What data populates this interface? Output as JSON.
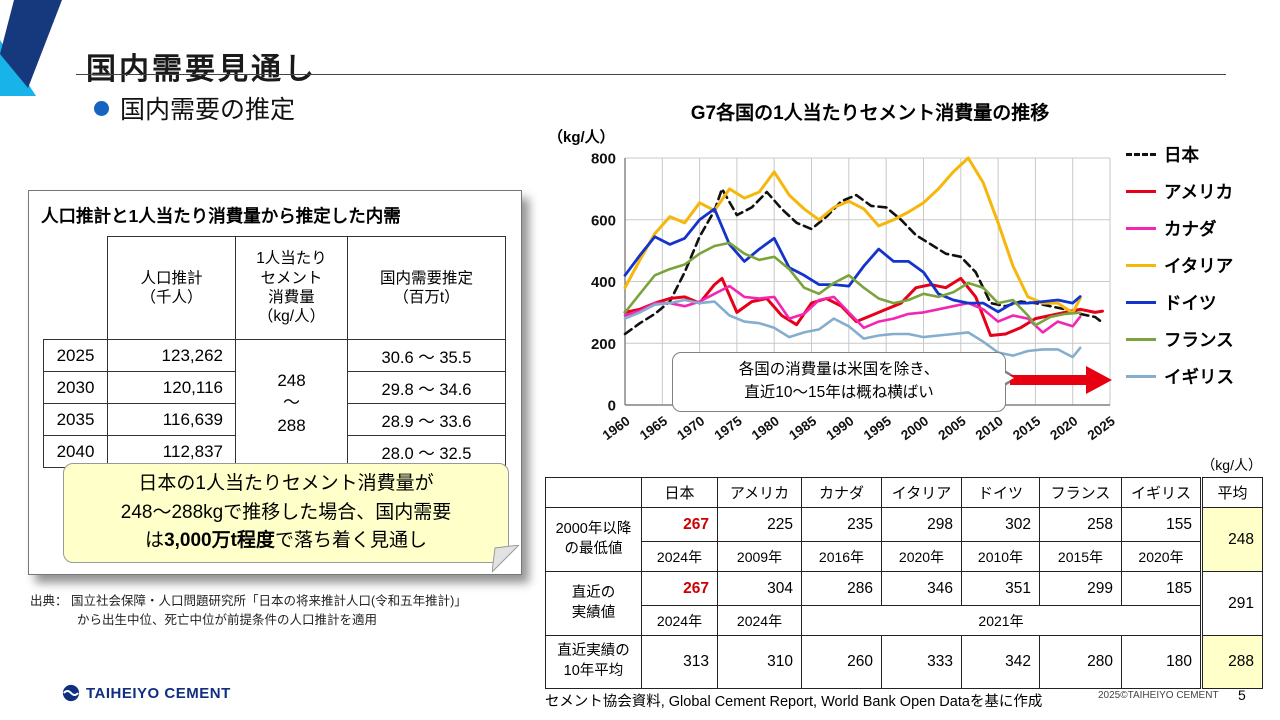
{
  "slide": {
    "title": "国内需要見通し",
    "subtitle": "国内需要の推定",
    "footer_source": "セメント協会資料, Global Cement Report, World Bank Open Dataを基に作成",
    "copyright": "2025©TAIHEIYO CEMENT",
    "page_number": "5",
    "logo_text": "TAIHEIYO CEMENT"
  },
  "estimate_panel": {
    "title": "人口推計と1人当たり消費量から推定した内需",
    "table": {
      "col_headers": [
        "",
        "人口推計\n（千人）",
        "1人当たり\nセメント\n消費量\n（kg/人）",
        "国内需要推定\n（百万t）"
      ],
      "consumption_merged": "248\n～\n288",
      "rows": [
        {
          "year": "2025",
          "population": "123,262",
          "demand": "30.6 ～ 35.5"
        },
        {
          "year": "2030",
          "population": "120,116",
          "demand": "29.8 ～ 34.6"
        },
        {
          "year": "2035",
          "population": "116,639",
          "demand": "28.9 ～ 33.6"
        },
        {
          "year": "2040",
          "population": "112,837",
          "demand": "28.0 ～ 32.5"
        }
      ]
    },
    "note_line1": "日本の1人当たりセメント消費量が",
    "note_line2": "248～288kgで推移した場合、国内需要",
    "note_line3_pre": "は",
    "note_line3_bold": "3,000万t程度",
    "note_line3_post": "で落ち着く見通し",
    "source_line1": "出典： 国立社会保障・人口問題研究所「日本の将来推計人口(令和五年推計)」",
    "source_line2": "から出生中位、死亡中位が前提条件の人口推計を適用"
  },
  "callout": {
    "line1": "各国の消費量は米国を除き、",
    "line2": "直近10～15年は概ね横ばい"
  },
  "chart_data": {
    "type": "line",
    "title": "G7各国の1人当たりセメント消費量の推移",
    "ylabel": "（kg/人）",
    "xlabel": "",
    "ylim": [
      0,
      800
    ],
    "yticks": [
      0,
      200,
      400,
      600,
      800
    ],
    "xticks": [
      1960,
      1965,
      1970,
      1975,
      1980,
      1985,
      1990,
      1995,
      2000,
      2005,
      2010,
      2015,
      2020,
      2025
    ],
    "x_range": [
      1960,
      2025
    ],
    "grid": true,
    "legend_position": "right",
    "series": [
      {
        "id": "japan",
        "name": "日本",
        "color": "#111111",
        "dash": true,
        "width": 2.6,
        "x": [
          1960,
          1962,
          1964,
          1966,
          1968,
          1970,
          1972,
          1973,
          1975,
          1977,
          1979,
          1981,
          1983,
          1985,
          1987,
          1989,
          1991,
          1993,
          1995,
          1997,
          1999,
          2001,
          2003,
          2005,
          2007,
          2009,
          2011,
          2013,
          2015,
          2017,
          2019,
          2021,
          2023,
          2024
        ],
        "y": [
          230,
          265,
          295,
          335,
          430,
          545,
          630,
          700,
          615,
          640,
          690,
          635,
          590,
          570,
          610,
          660,
          680,
          645,
          640,
          600,
          550,
          520,
          490,
          480,
          430,
          330,
          320,
          335,
          330,
          320,
          310,
          295,
          285,
          267
        ]
      },
      {
        "id": "usa",
        "name": "アメリカ",
        "color": "#e60019",
        "dash": false,
        "width": 3,
        "x": [
          1960,
          1962,
          1964,
          1966,
          1968,
          1970,
          1972,
          1973,
          1975,
          1977,
          1979,
          1981,
          1983,
          1985,
          1987,
          1989,
          1991,
          1993,
          1995,
          1997,
          1999,
          2001,
          2003,
          2005,
          2007,
          2009,
          2011,
          2013,
          2015,
          2017,
          2019,
          2021,
          2023,
          2024
        ],
        "y": [
          300,
          310,
          330,
          345,
          350,
          330,
          390,
          410,
          300,
          335,
          345,
          290,
          260,
          330,
          345,
          320,
          270,
          290,
          310,
          330,
          380,
          390,
          380,
          410,
          350,
          225,
          230,
          250,
          280,
          290,
          300,
          310,
          300,
          304
        ]
      },
      {
        "id": "canada",
        "name": "カナダ",
        "color": "#f326b4",
        "dash": false,
        "width": 2.6,
        "x": [
          1960,
          1962,
          1964,
          1966,
          1968,
          1970,
          1972,
          1974,
          1976,
          1978,
          1980,
          1982,
          1984,
          1986,
          1988,
          1990,
          1992,
          1994,
          1996,
          1998,
          2000,
          2002,
          2004,
          2006,
          2008,
          2010,
          2012,
          2014,
          2016,
          2018,
          2020,
          2021
        ],
        "y": [
          290,
          305,
          330,
          330,
          320,
          335,
          360,
          385,
          350,
          345,
          350,
          280,
          295,
          340,
          350,
          300,
          250,
          270,
          280,
          295,
          300,
          310,
          320,
          330,
          310,
          270,
          290,
          280,
          235,
          270,
          255,
          286
        ]
      },
      {
        "id": "italy",
        "name": "イタリア",
        "color": "#f6b70c",
        "dash": false,
        "width": 3,
        "x": [
          1960,
          1962,
          1964,
          1966,
          1968,
          1970,
          1972,
          1974,
          1976,
          1978,
          1980,
          1982,
          1984,
          1986,
          1988,
          1990,
          1992,
          1994,
          1996,
          1998,
          2000,
          2002,
          2004,
          2006,
          2008,
          2010,
          2012,
          2014,
          2016,
          2018,
          2020,
          2021
        ],
        "y": [
          380,
          470,
          555,
          610,
          590,
          655,
          630,
          700,
          670,
          690,
          755,
          680,
          635,
          600,
          640,
          660,
          635,
          580,
          600,
          625,
          655,
          700,
          755,
          800,
          720,
          590,
          450,
          350,
          330,
          330,
          298,
          346
        ]
      },
      {
        "id": "germany",
        "name": "ドイツ",
        "color": "#1433cc",
        "dash": false,
        "width": 2.8,
        "x": [
          1960,
          1962,
          1964,
          1966,
          1968,
          1970,
          1972,
          1974,
          1976,
          1978,
          1980,
          1982,
          1984,
          1986,
          1988,
          1990,
          1992,
          1994,
          1996,
          1998,
          2000,
          2002,
          2004,
          2006,
          2008,
          2010,
          2012,
          2014,
          2016,
          2018,
          2020,
          2021
        ],
        "y": [
          420,
          485,
          545,
          520,
          540,
          600,
          635,
          520,
          465,
          505,
          540,
          445,
          420,
          390,
          390,
          385,
          450,
          505,
          465,
          465,
          430,
          360,
          340,
          330,
          330,
          302,
          330,
          330,
          335,
          340,
          330,
          351
        ]
      },
      {
        "id": "france",
        "name": "フランス",
        "color": "#7ba33c",
        "dash": false,
        "width": 2.6,
        "x": [
          1960,
          1962,
          1964,
          1966,
          1968,
          1970,
          1972,
          1974,
          1976,
          1978,
          1980,
          1982,
          1984,
          1986,
          1988,
          1990,
          1992,
          1994,
          1996,
          1998,
          2000,
          2002,
          2004,
          2006,
          2008,
          2010,
          2012,
          2014,
          2015,
          2017,
          2019,
          2021
        ],
        "y": [
          300,
          360,
          420,
          440,
          455,
          490,
          515,
          525,
          490,
          470,
          480,
          440,
          380,
          360,
          395,
          420,
          380,
          345,
          330,
          340,
          360,
          350,
          365,
          395,
          380,
          330,
          340,
          290,
          258,
          285,
          295,
          299
        ]
      },
      {
        "id": "uk",
        "name": "イギリス",
        "color": "#85aece",
        "dash": false,
        "width": 2.6,
        "x": [
          1960,
          1962,
          1964,
          1966,
          1968,
          1970,
          1972,
          1974,
          1976,
          1978,
          1980,
          1982,
          1984,
          1986,
          1988,
          1990,
          1992,
          1994,
          1996,
          1998,
          2000,
          2002,
          2004,
          2006,
          2008,
          2010,
          2012,
          2014,
          2016,
          2018,
          2020,
          2021
        ],
        "y": [
          280,
          300,
          325,
          330,
          340,
          330,
          335,
          290,
          270,
          265,
          250,
          220,
          235,
          245,
          280,
          255,
          215,
          225,
          230,
          230,
          220,
          225,
          230,
          235,
          205,
          170,
          160,
          175,
          180,
          180,
          155,
          185
        ]
      }
    ]
  },
  "stats_table": {
    "unit_label": "（kg/人）",
    "countries": [
      "日本",
      "アメリカ",
      "カナダ",
      "イタリア",
      "ドイツ",
      "フランス",
      "イギリス"
    ],
    "country_ids": [
      "japan",
      "usa",
      "canada",
      "italy",
      "germany",
      "france",
      "uk"
    ],
    "average_label": "平均",
    "row_min": {
      "label_line1": "2000年以降",
      "label_line2": "の最低値",
      "values": [
        "267",
        "225",
        "235",
        "298",
        "302",
        "258",
        "155"
      ],
      "years": [
        "2024年",
        "2009年",
        "2016年",
        "2020年",
        "2010年",
        "2015年",
        "2020年"
      ],
      "average": "248"
    },
    "row_recent": {
      "label_line1": "直近の",
      "label_line2": "実績値",
      "values": [
        "267",
        "304",
        "286",
        "346",
        "351",
        "299",
        "185"
      ],
      "years": [
        "2024年",
        "2024年"
      ],
      "years_merged": "2021年",
      "average": "291"
    },
    "row_decade": {
      "label_line1": "直近実績の",
      "label_line2": "10年平均",
      "values": [
        "313",
        "310",
        "260",
        "333",
        "342",
        "280",
        "180"
      ],
      "average": "288"
    }
  }
}
